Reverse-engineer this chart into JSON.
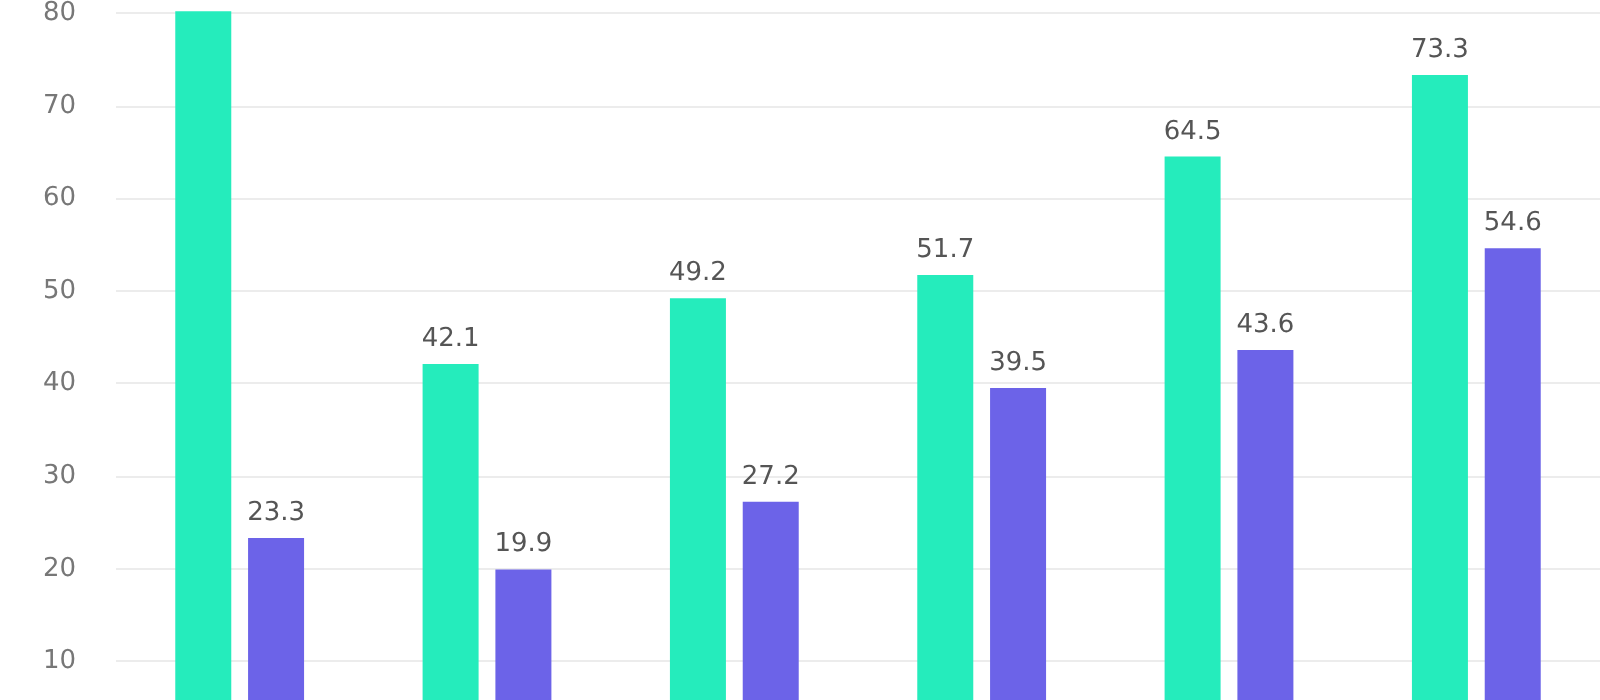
{
  "chart_data": {
    "type": "bar",
    "categories": [
      null,
      null,
      null,
      null,
      null,
      null
    ],
    "series": [
      {
        "color": "#25ecbc",
        "values": [
          80.2,
          42.1,
          49.2,
          51.7,
          64.5,
          73.3
        ],
        "value_labels": [
          null,
          "42.1",
          "49.2",
          "51.7",
          "64.5",
          "73.3"
        ]
      },
      {
        "color": "#6c63e8",
        "values": [
          23.3,
          19.9,
          27.2,
          39.5,
          43.6,
          54.6
        ],
        "value_labels": [
          "23.3",
          "19.9",
          "27.2",
          "39.5",
          "43.6",
          "54.6"
        ]
      }
    ],
    "ylim": [
      5.8,
      80.2
    ],
    "yticks": [
      10,
      20,
      30,
      40,
      50,
      60,
      70,
      80
    ],
    "grid": "y",
    "tick_labels": "y"
  }
}
